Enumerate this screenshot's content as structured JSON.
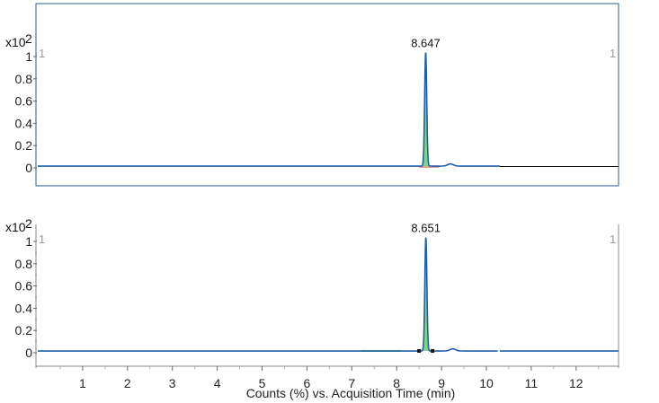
{
  "chart_data": [
    {
      "type": "line",
      "scale_label": "x10",
      "scale_exponent": "2",
      "marker_left": "1",
      "marker_right": "1",
      "ylim": [
        0,
        1.1
      ],
      "yticks": [
        "0",
        "0.2",
        "0.4",
        "0.6",
        "0.8",
        "1"
      ],
      "xlim": [
        0,
        13
      ],
      "peak": {
        "rt": 8.647,
        "label": "8.647",
        "height": 1.02,
        "width": 0.055
      },
      "baseline": 0.016,
      "minor_bumps": [
        {
          "x": 9.2,
          "height": 0.02
        }
      ],
      "integration": {
        "start": 8.5,
        "end": 8.95
      },
      "trace_end": 10.3,
      "colors": {
        "trace": "#1f5fa8",
        "fill": "#7ed67e",
        "frame": "#2a5d8f",
        "baseline_ext": "#111111",
        "integration_base": "#d9a090"
      },
      "show_x_ticks": false,
      "framed": true
    },
    {
      "type": "line",
      "scale_label": "x10",
      "scale_exponent": "2",
      "marker_left": "1",
      "marker_right": "1",
      "ylim": [
        0,
        1.1
      ],
      "yticks": [
        "0",
        "0.2",
        "0.4",
        "0.6",
        "0.8",
        "1"
      ],
      "xlim": [
        0,
        13
      ],
      "peak": {
        "rt": 8.651,
        "label": "8.651",
        "height": 1.02,
        "width": 0.055
      },
      "baseline": 0.016,
      "minor_bumps": [
        {
          "x": 9.25,
          "height": 0.02
        }
      ],
      "integration": {
        "start": 8.5,
        "end": 8.8
      },
      "pre_peak_segment": {
        "start": 7.2,
        "end": 8.1
      },
      "trace_end": 10.3,
      "colors": {
        "trace": "#1f5fa8",
        "fill": "#7ed67e",
        "frame": "#888888",
        "marker": "#111111"
      },
      "show_x_ticks": true,
      "xticks": [
        "1",
        "2",
        "3",
        "4",
        "5",
        "6",
        "7",
        "8",
        "9",
        "10",
        "11",
        "12"
      ],
      "xlabel": "Counts (%) vs. Acquisition Time (min)",
      "framed": false
    }
  ]
}
